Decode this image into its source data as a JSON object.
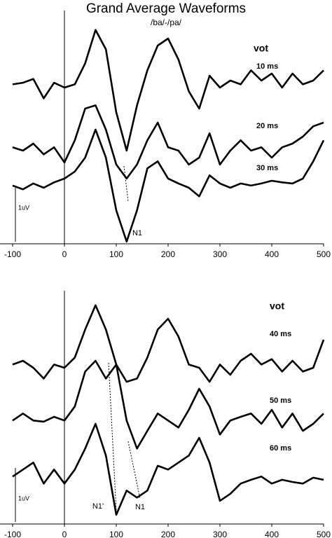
{
  "title": "Grand Average Waveforms",
  "subtitle": "/ba/-/pa/",
  "chart_data": [
    {
      "type": "line",
      "legend_title": "vot",
      "scale_label": "1uV",
      "annotations": [
        "N1"
      ],
      "x": [
        -100,
        -80,
        -60,
        -40,
        -20,
        0,
        20,
        40,
        60,
        80,
        100,
        120,
        140,
        160,
        180,
        200,
        220,
        240,
        260,
        280,
        300,
        320,
        340,
        360,
        380,
        400,
        420,
        440,
        460,
        480,
        500
      ],
      "xlim": [
        -100,
        500
      ],
      "xticks": [
        -100,
        0,
        100,
        200,
        300,
        400,
        500
      ],
      "ylim": [
        0,
        4.2
      ],
      "series": [
        {
          "name": "10 ms",
          "color": "#000000",
          "values": [
            2.96,
            2.99,
            3.06,
            2.7,
            2.99,
            2.9,
            2.96,
            3.35,
            3.97,
            3.61,
            2.44,
            1.73,
            2.57,
            3.22,
            3.68,
            3.81,
            3.42,
            2.83,
            2.51,
            3.12,
            2.9,
            3.03,
            2.96,
            3.22,
            3.03,
            3.16,
            2.9,
            3.16,
            2.96,
            3.03,
            3.22
          ]
        },
        {
          "name": "20 ms",
          "color": "#000000",
          "values": [
            1.79,
            1.73,
            1.86,
            1.66,
            1.79,
            1.51,
            1.92,
            2.51,
            2.57,
            2.12,
            1.47,
            1.21,
            1.47,
            1.92,
            2.25,
            1.79,
            1.73,
            1.47,
            1.6,
            2.05,
            1.47,
            1.73,
            1.92,
            1.73,
            1.79,
            1.6,
            1.79,
            1.86,
            1.99,
            2.18,
            2.25
          ]
        },
        {
          "name": "30 ms",
          "color": "#000000",
          "values": [
            1.08,
            1.01,
            1.12,
            1.04,
            1.14,
            1.21,
            1.34,
            1.6,
            2.12,
            1.6,
            0.62,
            0.04,
            0.62,
            1.4,
            1.53,
            1.21,
            1.12,
            1.04,
            0.88,
            1.27,
            1.12,
            1.04,
            1.12,
            1.08,
            1.12,
            1.17,
            1.14,
            1.12,
            1.21,
            1.53,
            1.92
          ]
        }
      ]
    },
    {
      "type": "line",
      "legend_title": "vot",
      "scale_label": "1uV",
      "annotations": [
        "N1'",
        "N1"
      ],
      "x": [
        -100,
        -80,
        -60,
        -40,
        -20,
        0,
        20,
        40,
        60,
        80,
        100,
        120,
        140,
        160,
        180,
        200,
        220,
        240,
        260,
        280,
        300,
        320,
        340,
        360,
        380,
        400,
        420,
        440,
        460,
        480,
        500
      ],
      "xlim": [
        -100,
        500
      ],
      "xticks": [
        -100,
        0,
        100,
        200,
        300,
        400,
        500
      ],
      "ylim": [
        0,
        4.2
      ],
      "series": [
        {
          "name": "40 ms",
          "color": "#000000",
          "values": [
            2.96,
            3.03,
            2.9,
            2.7,
            2.96,
            2.9,
            3.09,
            3.61,
            4.06,
            3.61,
            2.96,
            2.64,
            2.7,
            3.09,
            3.61,
            3.81,
            3.48,
            2.96,
            2.9,
            2.64,
            2.96,
            2.77,
            3.03,
            3.16,
            2.96,
            3.06,
            2.83,
            3.03,
            2.83,
            2.9,
            3.42
          ]
        },
        {
          "name": "50 ms",
          "color": "#000000",
          "values": [
            1.92,
            2.05,
            1.92,
            1.9,
            1.99,
            1.92,
            2.18,
            2.83,
            3.03,
            2.7,
            2.96,
            1.92,
            1.4,
            1.73,
            2.05,
            1.92,
            1.79,
            2.12,
            2.51,
            2.18,
            1.66,
            1.92,
            1.99,
            2.05,
            1.86,
            2.12,
            1.79,
            2.05,
            1.73,
            1.86,
            2.05
          ]
        },
        {
          "name": "60 ms",
          "color": "#000000",
          "values": [
            0.88,
            1.01,
            1.14,
            0.75,
            1.01,
            0.75,
            1.01,
            1.4,
            1.86,
            1.27,
            0.17,
            0.62,
            0.49,
            0.62,
            1.08,
            1.01,
            1.14,
            1.27,
            1.6,
            1.14,
            0.43,
            0.56,
            0.75,
            0.82,
            0.88,
            0.75,
            0.82,
            0.78,
            0.75,
            0.86,
            0.82
          ]
        }
      ]
    }
  ]
}
